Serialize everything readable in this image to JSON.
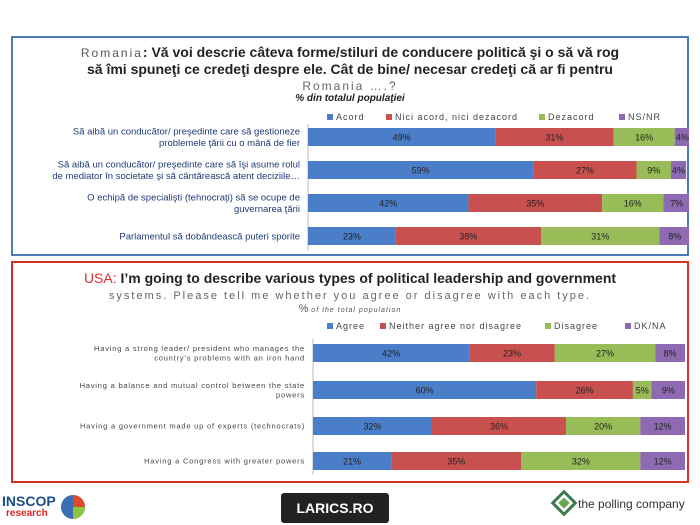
{
  "colors": {
    "agree": "#4a7ec8",
    "neutral": "#c8504e",
    "disagree": "#98bc58",
    "dk": "#8e6ab2"
  },
  "ro": {
    "title_country": "Romania",
    "title_line1": ": Vă voi descrie câteva forme/stiluri de conducere politică şi o să vă rog",
    "title_line2": "să îmi spuneţi ce credeţi despre ele. Cât de bine/ necesar credeţi că ar fi pentru",
    "title_line3": "Romania ….?",
    "subtitle": "% din totalul populaţiei"
  },
  "us": {
    "title_country": "USA:",
    "title_line1": " I’m going to describe various types of political leadership and government",
    "title_line2": "systems. Please tell me whether you agree or disagree with each type.",
    "subtitle_pct": "%",
    "subtitle": "of the total population"
  },
  "chart_data": [
    {
      "type": "bar",
      "orientation": "horizontal",
      "stacked": true,
      "legend_position": "top",
      "categories": [
        [
          "Să aibă un conducător/ preşedinte care să gestioneze",
          "problemele ţării cu o mână de fier"
        ],
        [
          "Să aibă un conducător/ preşedinte care să îşi asume rolul",
          "de mediator în societate şi să cântărească atent deciziile…"
        ],
        [
          "O echipă de specialişti (tehnocraţi) să se ocupe de",
          "guvernarea ţării"
        ],
        [
          "Parlamentul să dobândească puteri sporite"
        ]
      ],
      "series": [
        {
          "name": "Acord",
          "values": [
            49,
            59,
            42,
            23
          ]
        },
        {
          "name": "Nici acord, nici dezacord",
          "values": [
            31,
            27,
            35,
            38
          ]
        },
        {
          "name": "Dezacord",
          "values": [
            16,
            9,
            16,
            31
          ]
        },
        {
          "name": "NS/NR",
          "values": [
            4,
            4,
            7,
            8
          ]
        }
      ]
    },
    {
      "type": "bar",
      "orientation": "horizontal",
      "stacked": true,
      "legend_position": "top",
      "categories": [
        [
          "Having a strong leader/ president who manages the",
          "country’s problems with an iron hand"
        ],
        [
          "Having a balance and mutual control between the state",
          "powers"
        ],
        [
          "Having a government made up of experts (technocrats)"
        ],
        [
          "Having a Congress with greater powers"
        ]
      ],
      "series": [
        {
          "name": "Agree",
          "values": [
            42,
            60,
            32,
            21
          ]
        },
        {
          "name": "Neither agree nor disagree",
          "values": [
            23,
            26,
            36,
            35
          ]
        },
        {
          "name": "Disagree",
          "values": [
            27,
            5,
            20,
            32
          ]
        },
        {
          "name": "DK/NA",
          "values": [
            8,
            9,
            12,
            12
          ]
        }
      ]
    }
  ],
  "footer": {
    "inscop_name": "INSCOP",
    "inscop_sub": "research",
    "larics": "LARICS.RO",
    "polling": "the polling company"
  }
}
